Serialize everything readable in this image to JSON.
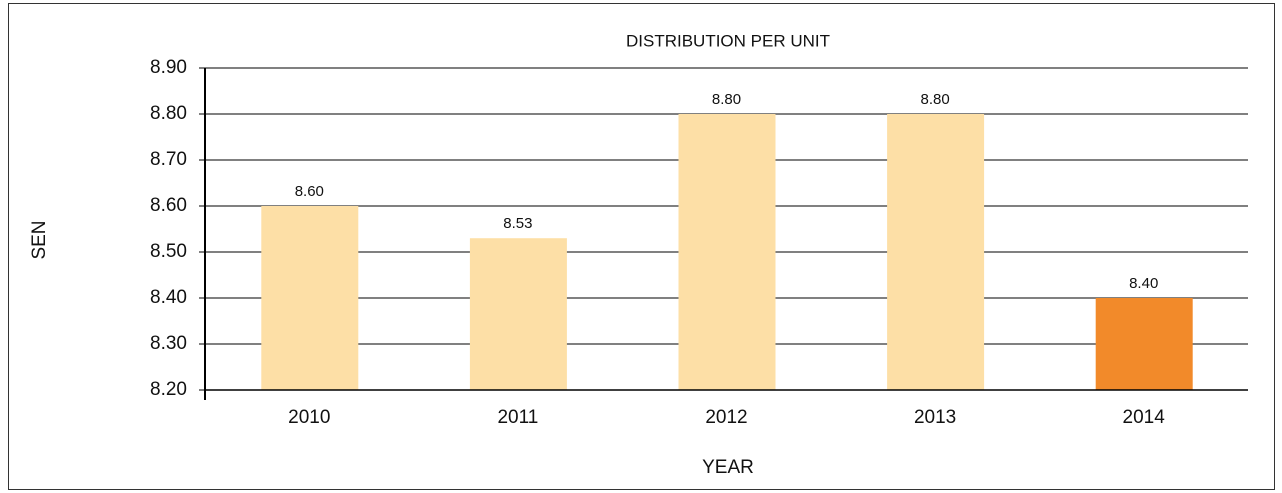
{
  "chart_data": {
    "type": "bar",
    "title": "DISTRIBUTION PER UNIT",
    "y_label": "SEN",
    "x_label": "YEAR",
    "categories": [
      "2010",
      "2011",
      "2012",
      "2013",
      "2014"
    ],
    "values": [
      8.6,
      8.53,
      8.8,
      8.8,
      8.4
    ],
    "value_labels": [
      "8.60",
      "8.53",
      "8.80",
      "8.80",
      "8.40"
    ],
    "colors": [
      "#fddfa6",
      "#fddfa6",
      "#fddfa6",
      "#fddfa6",
      "#f28a2a"
    ],
    "ylim": [
      8.2,
      8.9
    ],
    "yticks": [
      {
        "value": 8.2,
        "label": "8.20"
      },
      {
        "value": 8.3,
        "label": "8.30"
      },
      {
        "value": 8.4,
        "label": "8.40"
      },
      {
        "value": 8.5,
        "label": "8.50"
      },
      {
        "value": 8.6,
        "label": "8.60"
      },
      {
        "value": 8.7,
        "label": "8.70"
      },
      {
        "value": 8.8,
        "label": "8.80"
      },
      {
        "value": 8.9,
        "label": "8.90"
      }
    ],
    "grid": true
  }
}
